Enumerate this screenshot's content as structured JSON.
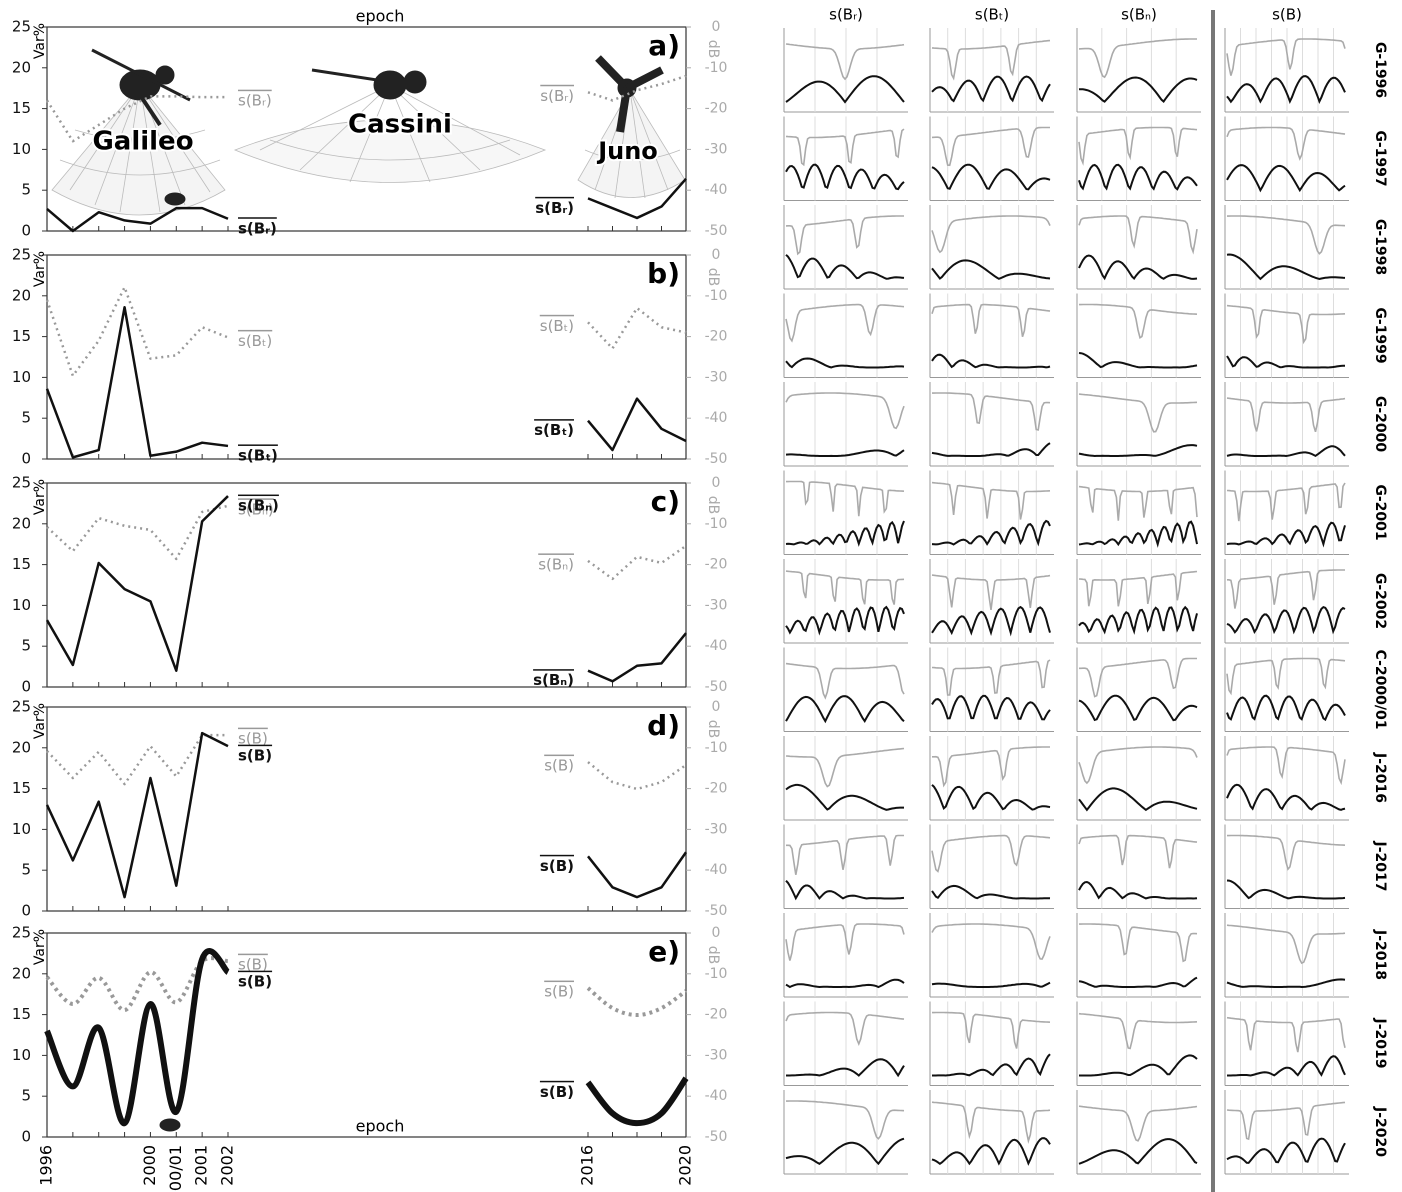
{
  "chart_data": [
    {
      "type": "line",
      "label": "a)",
      "ylabel": "Var%",
      "y2label": "dB",
      "annotation": "epoch",
      "spacecraft_labels": [
        "Galileo",
        "Cassini",
        "Juno"
      ],
      "ylim": [
        0,
        25
      ],
      "yticks": [
        0,
        5,
        10,
        15,
        20,
        25
      ],
      "y2lim": [
        -50,
        0
      ],
      "y2ticks": [
        0,
        -10,
        -20,
        -30,
        -40,
        -50
      ],
      "series": [
        {
          "name": "s(Bᵣ)",
          "color": "#999999",
          "style": "dotted",
          "axis": "y2",
          "values": [
            -18,
            -28,
            -24,
            -20,
            -17,
            -17,
            -17.2,
            -17.2,
            null,
            null,
            null,
            null,
            null
          ]
        },
        {
          "name": "s(Bᵣ)",
          "color": "#111111",
          "style": "solid",
          "values": [
            2.7,
            0,
            2.3,
            1.3,
            0.9,
            2.8,
            2.8,
            1.5,
            null,
            null,
            null,
            null,
            null
          ]
        },
        {
          "name": "s(Bᵣ)",
          "color": "#999999",
          "style": "dotted",
          "axis": "y2",
          "values": [
            null,
            null,
            null,
            null,
            null,
            null,
            null,
            null,
            -16,
            -18,
            -15.5,
            -14,
            -12
          ]
        },
        {
          "name": "s(Bᵣ)",
          "color": "#111111",
          "style": "solid",
          "values": [
            null,
            null,
            null,
            null,
            null,
            null,
            null,
            null,
            4.0,
            2.8,
            1.6,
            3.0,
            6.4
          ]
        }
      ]
    },
    {
      "type": "line",
      "label": "b)",
      "ylabel": "Var%",
      "y2label": "dB",
      "ylim": [
        0,
        25
      ],
      "yticks": [
        0,
        5,
        10,
        15,
        20,
        25
      ],
      "y2lim": [
        -50,
        0
      ],
      "y2ticks": [
        0,
        -10,
        -20,
        -30,
        -40,
        -50
      ],
      "series": [
        {
          "name": "s(Bₜ)",
          "color": "#999999",
          "style": "dotted",
          "axis": "y2",
          "values": [
            -11,
            -29.6,
            -21,
            -7.9,
            -25.4,
            -24.6,
            -17.7,
            -20.2,
            null,
            null,
            null,
            null,
            null
          ]
        },
        {
          "name": "s(Bₜ)",
          "color": "#111111",
          "style": "solid",
          "values": [
            8.6,
            0.2,
            1.1,
            18.6,
            0.4,
            0.9,
            2.0,
            1.6,
            null,
            null,
            null,
            null,
            null
          ]
        },
        {
          "name": "s(Bₜ)",
          "color": "#999999",
          "style": "dotted",
          "axis": "y2",
          "values": [
            null,
            null,
            null,
            null,
            null,
            null,
            null,
            null,
            -16.5,
            -22.9,
            -13,
            -17.7,
            -19
          ]
        },
        {
          "name": "s(Bₜ)",
          "color": "#111111",
          "style": "solid",
          "values": [
            null,
            null,
            null,
            null,
            null,
            null,
            null,
            null,
            4.7,
            1.1,
            7.4,
            3.7,
            2.2
          ]
        }
      ]
    },
    {
      "type": "line",
      "label": "c)",
      "ylabel": "Var%",
      "y2label": "dB",
      "ylim": [
        0,
        25
      ],
      "yticks": [
        0,
        5,
        10,
        15,
        20,
        25
      ],
      "y2lim": [
        -50,
        0
      ],
      "y2ticks": [
        0,
        -10,
        -20,
        -30,
        -40,
        -50
      ],
      "series": [
        {
          "name": "s(Bₙ)",
          "color": "#999999",
          "style": "dotted",
          "axis": "y2",
          "values": [
            -10.8,
            -16.7,
            -8.6,
            -10.5,
            -11.5,
            -18.6,
            -7.1,
            -5.6,
            null,
            null,
            null,
            null,
            null
          ]
        },
        {
          "name": "s(Bₙ)",
          "color": "#111111",
          "style": "solid",
          "values": [
            8.2,
            2.7,
            15.2,
            12.0,
            10.5,
            2.0,
            20.3,
            23.4,
            null,
            null,
            null,
            null,
            null
          ]
        },
        {
          "name": "s(Bₙ)",
          "color": "#999999",
          "style": "dotted",
          "axis": "y2",
          "values": [
            null,
            null,
            null,
            null,
            null,
            null,
            null,
            null,
            -19.1,
            -23.5,
            -18.1,
            -19.6,
            -15.4
          ]
        },
        {
          "name": "s(Bₙ)",
          "color": "#111111",
          "style": "solid",
          "values": [
            null,
            null,
            null,
            null,
            null,
            null,
            null,
            null,
            2.0,
            0.7,
            2.6,
            2.9,
            6.6
          ]
        }
      ]
    },
    {
      "type": "line",
      "label": "d)",
      "ylabel": "Var%",
      "y2label": "dB",
      "ylim": [
        0,
        25
      ],
      "yticks": [
        0,
        5,
        10,
        15,
        20,
        25
      ],
      "y2lim": [
        -50,
        0
      ],
      "y2ticks": [
        0,
        -10,
        -20,
        -30,
        -40,
        -50
      ],
      "series": [
        {
          "name": "s(B)",
          "color": "#999999",
          "style": "dotted",
          "axis": "y2",
          "values": [
            -10.8,
            -17.4,
            -11,
            -18.9,
            -9.6,
            -17,
            -6.9,
            -6.9,
            null,
            null,
            null,
            null,
            null
          ]
        },
        {
          "name": "s(B)",
          "color": "#111111",
          "style": "solid",
          "values": [
            13.0,
            6.2,
            13.4,
            1.7,
            16.3,
            3.1,
            21.8,
            20.2,
            null,
            null,
            null,
            null,
            null
          ]
        },
        {
          "name": "s(B)",
          "color": "#999999",
          "style": "dotted",
          "axis": "y2",
          "values": [
            null,
            null,
            null,
            null,
            null,
            null,
            null,
            null,
            -13.5,
            -18.4,
            -20.1,
            -18.4,
            -14.2
          ]
        },
        {
          "name": "s(B)",
          "color": "#111111",
          "style": "solid",
          "values": [
            null,
            null,
            null,
            null,
            null,
            null,
            null,
            null,
            6.7,
            2.9,
            1.7,
            2.9,
            7.2
          ]
        }
      ]
    },
    {
      "type": "line",
      "smooth": true,
      "label": "e)",
      "ylabel": "Var%",
      "y2label": "dB",
      "annotation": "epoch",
      "categories": [
        "1996",
        null,
        null,
        null,
        "2000",
        "00/01",
        "2001",
        "2002",
        "2016",
        null,
        null,
        null,
        "2020"
      ],
      "ylim": [
        0,
        25
      ],
      "yticks": [
        0,
        5,
        10,
        15,
        20,
        25
      ],
      "y2lim": [
        -50,
        0
      ],
      "y2ticks": [
        0,
        -10,
        -20,
        -30,
        -40,
        -50
      ],
      "series": [
        {
          "name": "s(B)",
          "color": "#999999",
          "style": "dotted",
          "axis": "y2",
          "values": [
            -10.8,
            -17.4,
            -11,
            -18.9,
            -9.6,
            -17,
            -6.9,
            -6.9,
            null,
            null,
            null,
            null,
            null
          ]
        },
        {
          "name": "s(B)",
          "color": "#111111",
          "style": "solid",
          "values": [
            13.0,
            6.2,
            13.4,
            1.7,
            16.3,
            3.1,
            21.8,
            20.2,
            null,
            null,
            null,
            null,
            null
          ]
        },
        {
          "name": "s(B)",
          "color": "#999999",
          "style": "dotted",
          "axis": "y2",
          "values": [
            null,
            null,
            null,
            null,
            null,
            null,
            null,
            null,
            -13.5,
            -18.4,
            -20.1,
            -18.4,
            -14.2
          ]
        },
        {
          "name": "s(B)",
          "color": "#111111",
          "style": "solid",
          "values": [
            null,
            null,
            null,
            null,
            null,
            null,
            null,
            null,
            6.7,
            2.9,
            1.7,
            2.9,
            7.2
          ]
        }
      ]
    }
  ],
  "thumbnail_grid": {
    "columns": [
      "s(Bᵣ)",
      "s(Bₜ)",
      "s(Bₙ)",
      "s(B)"
    ],
    "rows": [
      "G-1996",
      "G-1997",
      "G-1998",
      "G-1999",
      "G-2000",
      "G-2001",
      "G-2002",
      "C-2000/01",
      "J-2016",
      "J-2017",
      "J-2018",
      "J-2019",
      "J-2020"
    ]
  }
}
